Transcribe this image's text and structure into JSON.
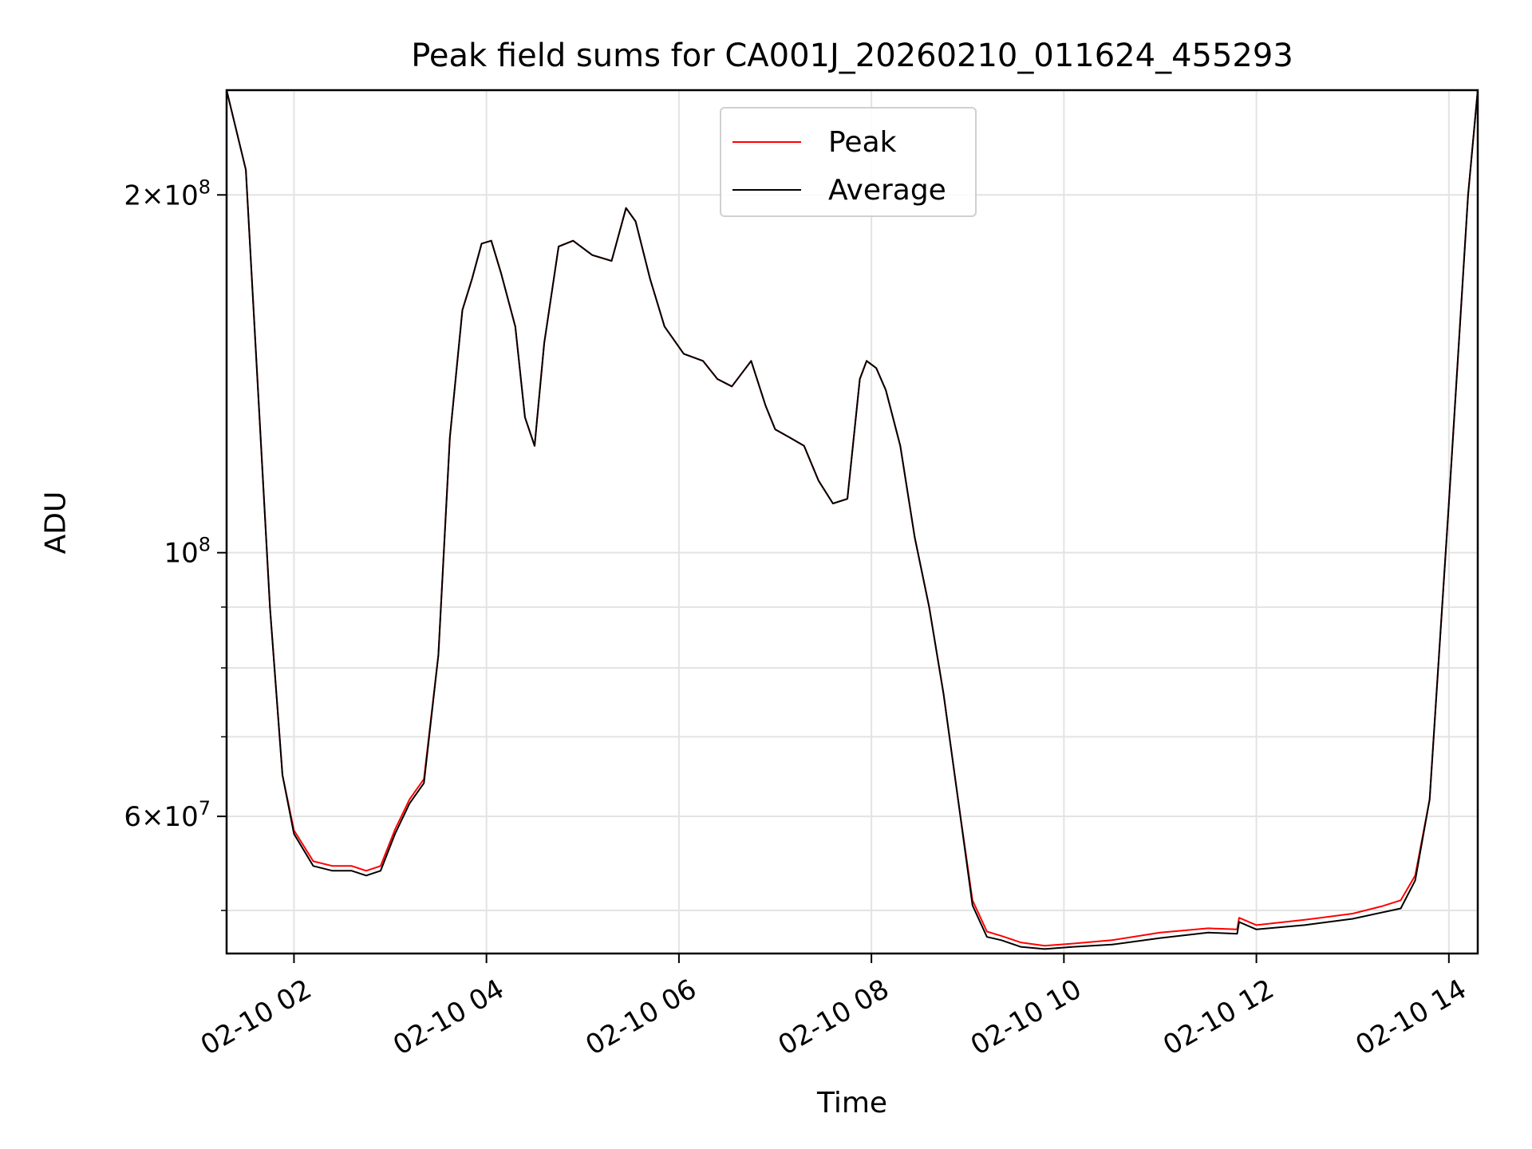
{
  "chart_data": {
    "type": "line",
    "title": "Peak field sums for CA001J_20260210_011624_455293",
    "xlabel": "Time",
    "ylabel": "ADU",
    "x_unit": "hours since 2026-02-10 00:00",
    "xlim": [
      1.3,
      14.3
    ],
    "ylim": [
      46000000,
      245000000
    ],
    "yscale": "log",
    "grid": true,
    "legend_position": "upper center",
    "x_ticks": [
      {
        "value": 2,
        "label": "02-10 02"
      },
      {
        "value": 4,
        "label": "02-10 04"
      },
      {
        "value": 6,
        "label": "02-10 06"
      },
      {
        "value": 8,
        "label": "02-10 08"
      },
      {
        "value": 10,
        "label": "02-10 10"
      },
      {
        "value": 12,
        "label": "02-10 12"
      },
      {
        "value": 14,
        "label": "02-10 14"
      }
    ],
    "y_major_ticks": [
      {
        "value": 60000000,
        "base": "6",
        "exp": "7"
      },
      {
        "value": 100000000,
        "base": "",
        "exp": "8"
      },
      {
        "value": 200000000,
        "base": "2",
        "exp": "8"
      }
    ],
    "y_minor_ticks": [
      50000000,
      70000000,
      80000000,
      90000000
    ],
    "series": [
      {
        "name": "Average",
        "color": "#000000",
        "x": [
          1.3,
          1.5,
          1.62,
          1.75,
          1.88,
          2.0,
          2.2,
          2.4,
          2.6,
          2.75,
          2.9,
          3.05,
          3.2,
          3.35,
          3.5,
          3.62,
          3.75,
          3.85,
          3.95,
          4.05,
          4.15,
          4.3,
          4.4,
          4.5,
          4.6,
          4.75,
          4.9,
          5.1,
          5.3,
          5.45,
          5.55,
          5.7,
          5.85,
          6.05,
          6.25,
          6.4,
          6.55,
          6.75,
          6.9,
          7.0,
          7.15,
          7.3,
          7.45,
          7.6,
          7.75,
          7.88,
          7.95,
          8.05,
          8.15,
          8.3,
          8.45,
          8.6,
          8.75,
          8.9,
          9.05,
          9.2,
          9.35,
          9.55,
          9.8,
          10.1,
          10.5,
          11.0,
          11.5,
          11.8,
          11.82,
          12.0,
          12.5,
          13.0,
          13.3,
          13.5,
          13.65,
          13.8,
          14.0,
          14.2,
          14.3
        ],
        "values": [
          245000000,
          210000000,
          140000000,
          90000000,
          65000000,
          58000000,
          54500000,
          54000000,
          54000000,
          53500000,
          54000000,
          58000000,
          61500000,
          64000000,
          82000000,
          125000000,
          160000000,
          170000000,
          182000000,
          183000000,
          172000000,
          155000000,
          130000000,
          123000000,
          150000000,
          181000000,
          183000000,
          178000000,
          176000000,
          195000000,
          190000000,
          170000000,
          155000000,
          147000000,
          145000000,
          140000000,
          138000000,
          145000000,
          133000000,
          127000000,
          125000000,
          123000000,
          115000000,
          110000000,
          111000000,
          140000000,
          145000000,
          143000000,
          137000000,
          123000000,
          103000000,
          90000000,
          76000000,
          62000000,
          50500000,
          47500000,
          47200000,
          46600000,
          46400000,
          46600000,
          46800000,
          47400000,
          47900000,
          47800000,
          48900000,
          48200000,
          48600000,
          49200000,
          49800000,
          50200000,
          53000000,
          62000000,
          110000000,
          200000000,
          245000000
        ]
      },
      {
        "name": "Peak",
        "color": "#ff0000",
        "x": [
          1.3,
          1.5,
          1.62,
          1.75,
          1.88,
          2.0,
          2.2,
          2.4,
          2.6,
          2.75,
          2.9,
          3.05,
          3.2,
          3.35,
          3.5,
          3.62,
          3.75,
          3.85,
          3.95,
          4.05,
          4.15,
          4.3,
          4.4,
          4.5,
          4.6,
          4.75,
          4.9,
          5.1,
          5.3,
          5.45,
          5.55,
          5.7,
          5.85,
          6.05,
          6.25,
          6.4,
          6.55,
          6.75,
          6.9,
          7.0,
          7.15,
          7.3,
          7.45,
          7.6,
          7.75,
          7.88,
          7.95,
          8.05,
          8.15,
          8.3,
          8.45,
          8.6,
          8.75,
          8.9,
          9.05,
          9.2,
          9.35,
          9.55,
          9.8,
          10.1,
          10.5,
          11.0,
          11.5,
          11.8,
          11.82,
          12.0,
          12.5,
          13.0,
          13.3,
          13.5,
          13.65,
          13.8,
          14.0,
          14.2,
          14.3
        ],
        "values": [
          245000000,
          210000000,
          140000000,
          90000000,
          65000000,
          58400000,
          55000000,
          54500000,
          54500000,
          54000000,
          54500000,
          58500000,
          62000000,
          64500000,
          82000000,
          125000000,
          160000000,
          170000000,
          182000000,
          183000000,
          172000000,
          155000000,
          130000000,
          123000000,
          150000000,
          181000000,
          183000000,
          178000000,
          176000000,
          195000000,
          190000000,
          170000000,
          155000000,
          147000000,
          145000000,
          140000000,
          138000000,
          145000000,
          133000000,
          127000000,
          125000000,
          123000000,
          115000000,
          110000000,
          111000000,
          140000000,
          145000000,
          143000000,
          137000000,
          123000000,
          103000000,
          90000000,
          76000000,
          62000000,
          51000000,
          48000000,
          47600000,
          47000000,
          46700000,
          46900000,
          47200000,
          47900000,
          48300000,
          48200000,
          49300000,
          48600000,
          49100000,
          49700000,
          50400000,
          51000000,
          53500000,
          62000000,
          110000000,
          200000000,
          245000000
        ]
      }
    ],
    "legend_entries": [
      "Peak",
      "Average"
    ]
  }
}
